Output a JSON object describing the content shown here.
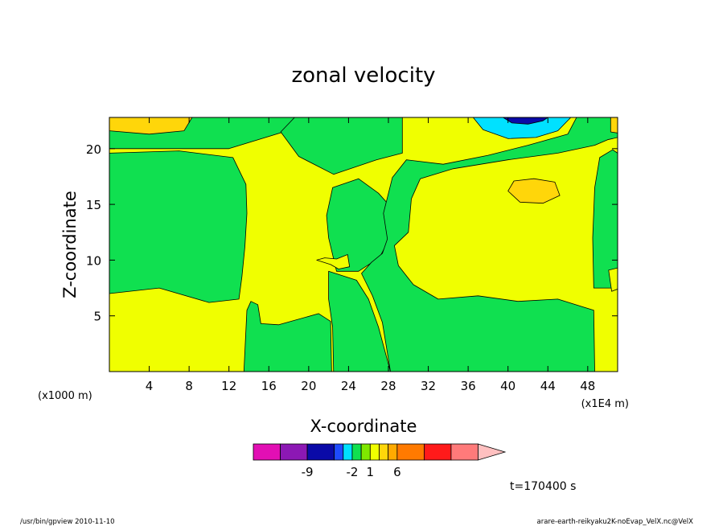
{
  "chart_data": {
    "type": "contour",
    "title": "zonal velocity",
    "xlabel": "X-coordinate",
    "ylabel": "Z-coordinate",
    "x_unit_left": "(x1000 m)",
    "x_unit_right": "(x1E4 m)",
    "xlim": [
      0,
      51
    ],
    "ylim": [
      0,
      22.8
    ],
    "xticks": [
      4,
      8,
      12,
      16,
      20,
      24,
      28,
      32,
      36,
      40,
      44,
      48
    ],
    "yticks": [
      5,
      10,
      15,
      20
    ],
    "grid": false,
    "time_label": "t=170400 s",
    "colorbar": {
      "colors": [
        "#e20fb4",
        "#8c18b4",
        "#0a0aa8",
        "#1e4bff",
        "#00e1ff",
        "#10e050",
        "#7fe800",
        "#f0ff00",
        "#ffd60a",
        "#ffaa00",
        "#ff7a00",
        "#ff1a1a",
        "#ff7a7a",
        "#ffc0c0"
      ],
      "segment_weights": [
        3,
        3,
        3,
        1,
        1,
        1,
        1,
        1,
        1,
        1,
        3,
        3,
        3,
        3
      ],
      "tick_labels": [
        "-9",
        "-2",
        "1",
        "6"
      ],
      "tick_after_segment": [
        1,
        4,
        6,
        9
      ]
    },
    "regions": [
      {
        "level": "green",
        "color": "#10e050",
        "polygon": [
          [
            0,
            20
          ],
          [
            12,
            20
          ],
          [
            23,
            23
          ],
          [
            0,
            23
          ]
        ]
      },
      {
        "level": "green",
        "color": "#10e050",
        "polygon": [
          [
            0,
            7
          ],
          [
            5,
            7.5
          ],
          [
            10,
            6.2
          ],
          [
            13,
            6.5
          ],
          [
            13.3,
            8.5
          ],
          [
            13.6,
            11.2
          ],
          [
            13.8,
            14.2
          ],
          [
            13.7,
            16.8
          ],
          [
            12.4,
            19.2
          ],
          [
            7,
            19.8
          ],
          [
            0,
            19.6
          ]
        ]
      },
      {
        "level": "green",
        "color": "#10e050",
        "polygon": [
          [
            11,
            23
          ],
          [
            18.8,
            23
          ],
          [
            17.2,
            21.5
          ],
          [
            19,
            19.3
          ],
          [
            22.5,
            17.7
          ],
          [
            26.8,
            19
          ],
          [
            29.4,
            19.6
          ],
          [
            29.4,
            23
          ]
        ]
      },
      {
        "level": "green",
        "color": "#10e050",
        "polygon": [
          [
            22,
            12
          ],
          [
            21.8,
            14
          ],
          [
            22.4,
            16.5
          ],
          [
            25,
            17.3
          ],
          [
            27,
            16
          ],
          [
            28.5,
            14.5
          ],
          [
            28.8,
            12.5
          ],
          [
            27.8,
            11.4
          ],
          [
            27.2,
            10.4
          ],
          [
            26.2,
            9.7
          ],
          [
            25,
            9
          ],
          [
            22.8,
            9
          ]
        ]
      },
      {
        "level": "green",
        "color": "#10e050",
        "polygon": [
          [
            22,
            9
          ],
          [
            24.8,
            8.2
          ],
          [
            26,
            6.5
          ],
          [
            27,
            4
          ],
          [
            28.2,
            0
          ],
          [
            22.5,
            0
          ],
          [
            22.4,
            4
          ],
          [
            22,
            6.5
          ]
        ]
      },
      {
        "level": "green",
        "color": "#10e050",
        "polygon": [
          [
            13.5,
            0
          ],
          [
            22.3,
            0
          ],
          [
            22.2,
            4.5
          ],
          [
            21,
            5.2
          ],
          [
            17,
            4.2
          ],
          [
            15.2,
            4.3
          ],
          [
            14.9,
            6
          ],
          [
            14.2,
            6.3
          ],
          [
            13.8,
            5.5
          ]
        ]
      },
      {
        "level": "green",
        "color": "#10e050",
        "polygon": [
          [
            28.2,
            0
          ],
          [
            48.7,
            0
          ],
          [
            48.6,
            5.5
          ],
          [
            45,
            6.5
          ],
          [
            41,
            6.3
          ],
          [
            37,
            6.8
          ],
          [
            33,
            6.5
          ],
          [
            30.5,
            7.8
          ],
          [
            29,
            9.5
          ],
          [
            28.6,
            11.3
          ],
          [
            30,
            12.5
          ],
          [
            30.3,
            15.5
          ],
          [
            31.2,
            17.3
          ],
          [
            34.5,
            18.2
          ],
          [
            40,
            19
          ],
          [
            45,
            19.6
          ],
          [
            48.7,
            20.3
          ],
          [
            50,
            20.8
          ],
          [
            51,
            21
          ],
          [
            51,
            23
          ],
          [
            47,
            23
          ],
          [
            46,
            21.3
          ],
          [
            42,
            20.3
          ],
          [
            38,
            19.4
          ],
          [
            33.5,
            18.6
          ],
          [
            29.8,
            19
          ],
          [
            28.4,
            17.4
          ],
          [
            27.5,
            14.2
          ],
          [
            27.9,
            11.9
          ],
          [
            27.4,
            10.6
          ],
          [
            26.3,
            9.8
          ],
          [
            25.3,
            8.8
          ],
          [
            26.4,
            6.8
          ],
          [
            27.4,
            4.4
          ]
        ]
      },
      {
        "level": "green",
        "color": "#10e050",
        "polygon": [
          [
            48.6,
            7.5
          ],
          [
            48.5,
            12
          ],
          [
            48.7,
            16.5
          ],
          [
            49.2,
            19.2
          ],
          [
            50.5,
            19.9
          ],
          [
            51,
            19.6
          ],
          [
            51,
            7.5
          ]
        ]
      },
      {
        "level": "yellow",
        "color": "#f0ff00",
        "polygon": [
          [
            51,
            7.4
          ],
          [
            50.4,
            7.2
          ],
          [
            50.1,
            9.1
          ],
          [
            51,
            9.3
          ]
        ]
      },
      {
        "level": "yellow",
        "color": "#f0ff00",
        "polygon": [
          [
            20.8,
            10
          ],
          [
            21.6,
            10.2
          ],
          [
            22.8,
            10.1
          ],
          [
            23.9,
            10.5
          ],
          [
            24.1,
            9.4
          ],
          [
            23,
            9.2
          ],
          [
            22.2,
            9.6
          ]
        ]
      },
      {
        "level": "orange",
        "color": "#ffd60a",
        "polygon": [
          [
            0,
            21.6
          ],
          [
            4,
            21.3
          ],
          [
            7.5,
            21.6
          ],
          [
            8.3,
            22.8
          ],
          [
            0,
            22.8
          ]
        ]
      },
      {
        "level": "orange",
        "color": "#ffd60a",
        "polygon": [
          [
            40,
            16.2
          ],
          [
            41.2,
            15.2
          ],
          [
            43.5,
            15.1
          ],
          [
            45.2,
            15.8
          ],
          [
            44.7,
            17
          ],
          [
            42.6,
            17.3
          ],
          [
            40.6,
            17.1
          ]
        ]
      },
      {
        "level": "orange",
        "color": "#ffd60a",
        "polygon": [
          [
            50.3,
            22.8
          ],
          [
            50.3,
            21.5
          ],
          [
            51,
            21.4
          ],
          [
            51,
            22.8
          ]
        ]
      },
      {
        "level": "cyan",
        "color": "#00e1ff",
        "polygon": [
          [
            36.5,
            22.8
          ],
          [
            37.5,
            21.7
          ],
          [
            40,
            20.9
          ],
          [
            42.8,
            21
          ],
          [
            45,
            21.6
          ],
          [
            46.3,
            22.8
          ]
        ]
      },
      {
        "level": "blue",
        "color": "#0a0aa8",
        "polygon": [
          [
            39.5,
            22.8
          ],
          [
            40.4,
            22.3
          ],
          [
            42,
            22.2
          ],
          [
            43.5,
            22.5
          ],
          [
            44,
            22.8
          ]
        ]
      }
    ]
  },
  "footer": {
    "left": "/usr/bin/gpview  2010-11-10",
    "right": "arare-earth-reikyaku2K-noEvap_VelX.nc@VelX"
  }
}
